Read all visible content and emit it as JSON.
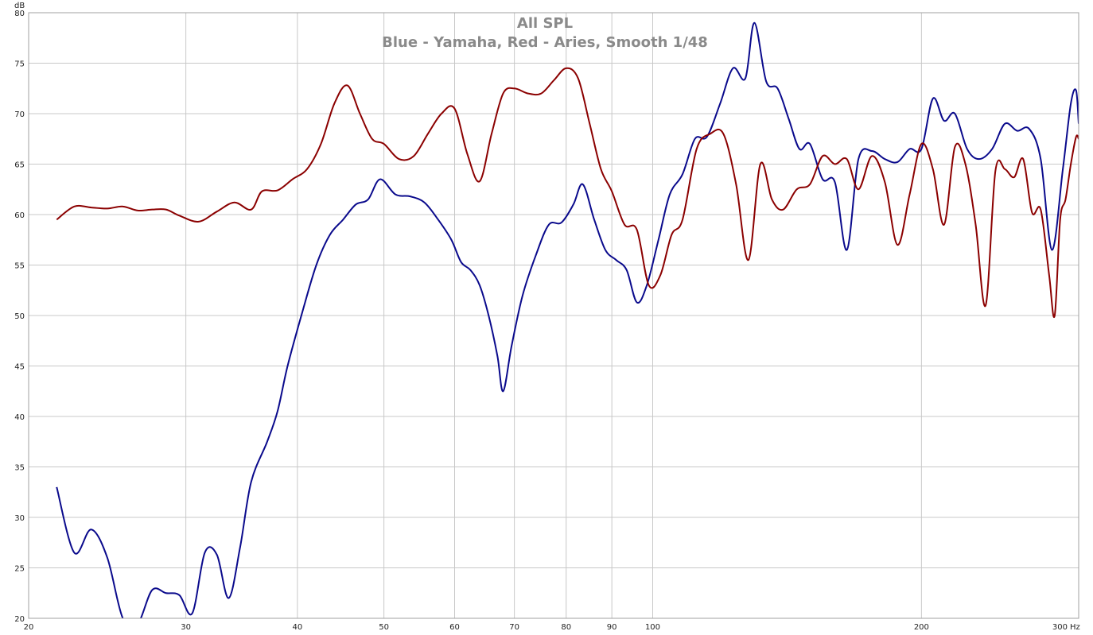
{
  "chart_data": {
    "type": "line",
    "title": "All SPL",
    "subtitle": "Blue - Yamaha, Red - Aries, Smooth 1/48",
    "ylabel": "dB",
    "xunit": "Hz",
    "xscale": "log",
    "xlim": [
      20,
      300
    ],
    "ylim": [
      20,
      80
    ],
    "grid": true,
    "xticks": [
      20,
      30,
      40,
      50,
      60,
      70,
      80,
      90,
      100,
      200,
      300
    ],
    "xtick_labels": [
      "20",
      "30",
      "40",
      "50",
      "60",
      "70",
      "80",
      "90",
      "100",
      "200",
      "300"
    ],
    "yticks": [
      20,
      25,
      30,
      35,
      40,
      45,
      50,
      55,
      60,
      65,
      70,
      75,
      80
    ],
    "ytick_labels": [
      "20",
      "25",
      "30",
      "35",
      "40",
      "45",
      "50",
      "55",
      "60",
      "65",
      "70",
      "75",
      "80"
    ],
    "series": [
      {
        "color": "#0a0a8c",
        "points": [
          [
            21.5,
            33
          ],
          [
            22.5,
            26.5
          ],
          [
            23.5,
            28.8
          ],
          [
            24.5,
            26
          ],
          [
            25.5,
            20
          ],
          [
            26.5,
            19.5
          ],
          [
            27.5,
            22.8
          ],
          [
            28.5,
            22.5
          ],
          [
            29.5,
            22.3
          ],
          [
            30.5,
            20.5
          ],
          [
            31.5,
            26.5
          ],
          [
            32.5,
            26.3
          ],
          [
            33.5,
            22
          ],
          [
            34.5,
            27
          ],
          [
            35.5,
            33.5
          ],
          [
            37,
            37.5
          ],
          [
            38,
            40.5
          ],
          [
            39,
            45
          ],
          [
            40.5,
            50.3
          ],
          [
            42,
            55
          ],
          [
            43.5,
            58
          ],
          [
            45,
            59.5
          ],
          [
            46.5,
            61
          ],
          [
            48,
            61.5
          ],
          [
            49.5,
            63.5
          ],
          [
            51.5,
            62
          ],
          [
            53.5,
            61.8
          ],
          [
            55.5,
            61.2
          ],
          [
            57.5,
            59.5
          ],
          [
            59.5,
            57.5
          ],
          [
            61,
            55.3
          ],
          [
            62.5,
            54.5
          ],
          [
            64,
            53
          ],
          [
            65.5,
            50
          ],
          [
            67,
            46
          ],
          [
            68,
            42.5
          ],
          [
            69.5,
            47
          ],
          [
            71.5,
            52
          ],
          [
            74,
            56
          ],
          [
            76.5,
            59
          ],
          [
            79,
            59.2
          ],
          [
            81.5,
            61
          ],
          [
            83.5,
            63
          ],
          [
            86,
            59.5
          ],
          [
            88.5,
            56.5
          ],
          [
            91,
            55.5
          ],
          [
            93.5,
            54.5
          ],
          [
            96,
            51.3
          ],
          [
            98.5,
            53
          ],
          [
            101.5,
            57.5
          ],
          [
            104.5,
            62
          ],
          [
            108,
            64
          ],
          [
            111.5,
            67.5
          ],
          [
            115,
            67.7
          ],
          [
            119,
            71
          ],
          [
            123,
            74.5
          ],
          [
            127,
            73.5
          ],
          [
            130,
            79
          ],
          [
            134,
            73.2
          ],
          [
            138,
            72.5
          ],
          [
            142,
            69.5
          ],
          [
            146,
            66.5
          ],
          [
            150,
            67
          ],
          [
            155,
            63.5
          ],
          [
            160,
            63.2
          ],
          [
            165,
            56.5
          ],
          [
            170,
            65.5
          ],
          [
            176,
            66.3
          ],
          [
            182,
            65.5
          ],
          [
            188,
            65.2
          ],
          [
            194,
            66.5
          ],
          [
            200,
            66.5
          ],
          [
            206,
            71.5
          ],
          [
            212,
            69.3
          ],
          [
            218,
            70
          ],
          [
            225,
            66.5
          ],
          [
            232,
            65.5
          ],
          [
            240,
            66.5
          ],
          [
            248,
            69
          ],
          [
            256,
            68.3
          ],
          [
            264,
            68.5
          ],
          [
            272,
            65.5
          ],
          [
            280,
            56.5
          ],
          [
            288,
            64.5
          ],
          [
            294,
            71
          ],
          [
            298,
            72.3
          ],
          [
            300,
            69
          ]
        ]
      },
      {
        "color": "#8b0000",
        "points": [
          [
            21.5,
            59.5
          ],
          [
            22.5,
            60.8
          ],
          [
            23.5,
            60.7
          ],
          [
            24.5,
            60.6
          ],
          [
            25.5,
            60.8
          ],
          [
            26.5,
            60.4
          ],
          [
            27.5,
            60.5
          ],
          [
            28.5,
            60.5
          ],
          [
            29.5,
            59.9
          ],
          [
            31,
            59.3
          ],
          [
            32.5,
            60.3
          ],
          [
            34,
            61.2
          ],
          [
            35.5,
            60.5
          ],
          [
            36.5,
            62.3
          ],
          [
            38,
            62.4
          ],
          [
            39.5,
            63.5
          ],
          [
            41,
            64.5
          ],
          [
            42.5,
            67
          ],
          [
            44,
            71
          ],
          [
            45.5,
            72.8
          ],
          [
            47,
            70
          ],
          [
            48.5,
            67.5
          ],
          [
            50,
            67
          ],
          [
            52,
            65.5
          ],
          [
            54,
            65.8
          ],
          [
            56,
            68
          ],
          [
            58,
            70
          ],
          [
            60,
            70.5
          ],
          [
            62,
            66
          ],
          [
            64,
            63.3
          ],
          [
            66,
            68
          ],
          [
            68,
            72
          ],
          [
            70,
            72.5
          ],
          [
            72.5,
            72
          ],
          [
            75,
            72
          ],
          [
            77.5,
            73.3
          ],
          [
            80,
            74.5
          ],
          [
            82.5,
            73.5
          ],
          [
            85,
            69
          ],
          [
            87.5,
            64.5
          ],
          [
            90,
            62.3
          ],
          [
            93,
            59
          ],
          [
            96,
            58.5
          ],
          [
            99,
            53
          ],
          [
            102,
            54
          ],
          [
            105,
            58
          ],
          [
            108,
            59.5
          ],
          [
            112,
            66.5
          ],
          [
            116,
            68
          ],
          [
            120,
            68
          ],
          [
            124,
            63
          ],
          [
            128,
            55.5
          ],
          [
            132,
            65
          ],
          [
            136,
            61.5
          ],
          [
            140,
            60.5
          ],
          [
            145,
            62.5
          ],
          [
            150,
            63
          ],
          [
            155,
            65.8
          ],
          [
            160,
            65
          ],
          [
            165,
            65.5
          ],
          [
            170,
            62.5
          ],
          [
            176,
            65.8
          ],
          [
            182,
            63.2
          ],
          [
            188,
            57
          ],
          [
            194,
            62
          ],
          [
            200,
            67
          ],
          [
            206,
            64.5
          ],
          [
            212,
            59
          ],
          [
            218,
            66.7
          ],
          [
            224,
            65
          ],
          [
            230,
            59
          ],
          [
            236,
            51
          ],
          [
            242,
            64.3
          ],
          [
            248,
            64.5
          ],
          [
            254,
            63.7
          ],
          [
            260,
            65.5
          ],
          [
            266,
            60.2
          ],
          [
            272,
            60.5
          ],
          [
            278,
            54
          ],
          [
            282,
            50
          ],
          [
            286,
            59.5
          ],
          [
            290,
            61.5
          ],
          [
            294,
            65
          ],
          [
            298,
            67.7
          ],
          [
            300,
            67.5
          ]
        ]
      }
    ]
  }
}
